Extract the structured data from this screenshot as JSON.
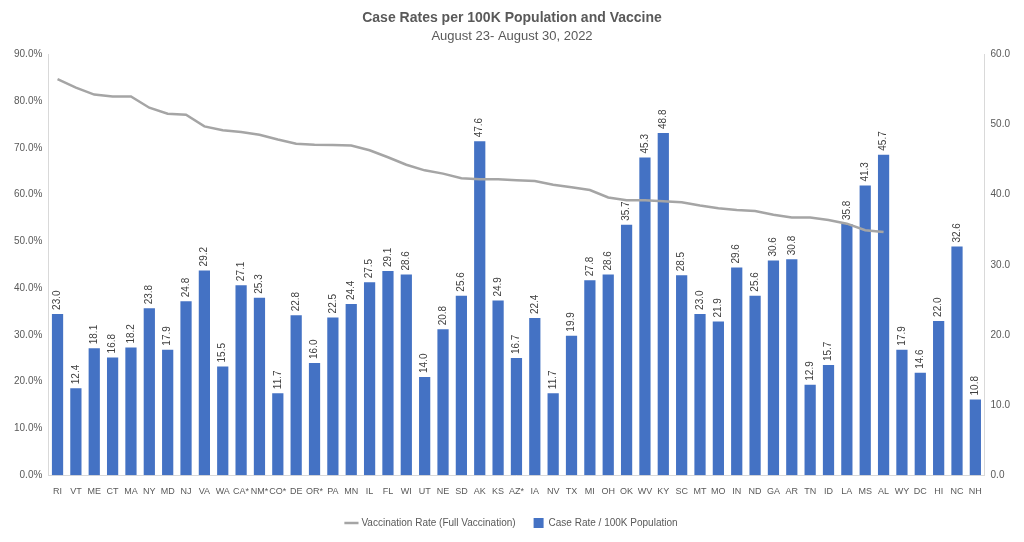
{
  "chart_data": {
    "type": "bar",
    "title": "Case Rates per 100K Population and Vaccine",
    "subtitle": "August 23- August 30, 2022",
    "categories": [
      "RI",
      "VT",
      "ME",
      "CT",
      "MA",
      "NY",
      "MD",
      "NJ",
      "VA",
      "WA",
      "CA*",
      "NM*",
      "CO*",
      "DE",
      "OR*",
      "PA",
      "MN",
      "IL",
      "FL",
      "WI",
      "UT",
      "NE",
      "SD",
      "AK",
      "KS",
      "AZ*",
      "IA",
      "NV",
      "TX",
      "MI",
      "OH",
      "OK",
      "WV",
      "KY",
      "SC",
      "MT",
      "MO",
      "IN",
      "ND",
      "GA",
      "AR",
      "TN",
      "ID",
      "LA",
      "MS",
      "AL",
      "WY",
      "DC",
      "HI",
      "NC",
      "NH"
    ],
    "series": [
      {
        "name": "Case Rate / 100K Population",
        "type": "bar",
        "color": "#4472c4",
        "axis": "y2",
        "values": [
          23.0,
          12.4,
          18.1,
          16.8,
          18.2,
          23.8,
          17.9,
          24.8,
          29.2,
          15.5,
          27.1,
          25.3,
          11.7,
          22.8,
          16.0,
          22.5,
          24.4,
          27.5,
          29.1,
          28.6,
          14.0,
          20.8,
          25.6,
          47.6,
          24.9,
          16.7,
          22.4,
          11.7,
          19.9,
          27.8,
          28.6,
          35.7,
          45.3,
          48.8,
          28.5,
          23.0,
          21.9,
          29.6,
          25.6,
          30.6,
          30.8,
          12.9,
          15.7,
          35.8,
          41.3,
          45.7,
          17.9,
          14.6,
          22.0,
          32.6,
          10.8
        ],
        "value_labels": [
          "23.0",
          "12.4",
          "18.1",
          "16.8",
          "18.2",
          "23.8",
          "17.9",
          "24.8",
          "29.2",
          "15.5",
          "27.1",
          "25.3",
          "11.7",
          "22.8",
          "16.0",
          "22.5",
          "24.4",
          "27.5",
          "29.1",
          "28.6",
          "14.0",
          "20.8",
          "25.6",
          "47.6",
          "24.9",
          "16.7",
          "22.4",
          "11.7",
          "19.9",
          "27.8",
          "28.6",
          "35.7",
          "45.3",
          "48.8",
          "28.5",
          "23.0",
          "21.9",
          "29.6",
          "25.6",
          "30.6",
          "30.8",
          "12.9",
          "15.7",
          "35.8",
          "41.3",
          "45.7",
          "17.9",
          "14.6",
          "22.0",
          "32.6",
          "10.8"
        ]
      },
      {
        "name": "Vaccination Rate (Full Vaccination)",
        "type": "line",
        "color": "#a5a5a5",
        "marker": "none",
        "line_style": "solid",
        "values": [
          84.7,
          82.9,
          81.4,
          81.0,
          81.0,
          78.6,
          77.3,
          77.1,
          74.6,
          73.8,
          73.4,
          72.8,
          71.8,
          70.9,
          70.7,
          70.6,
          70.5,
          69.5,
          68.0,
          66.4,
          65.2,
          64.5,
          63.5,
          63.3,
          63.3,
          63.1,
          62.9,
          62.1,
          61.6,
          61.0,
          59.4,
          58.8,
          58.8,
          58.6,
          58.4,
          57.7,
          57.1,
          56.7,
          56.5,
          55.7,
          55.1,
          55.1,
          54.6,
          53.8,
          52.4,
          52.0,
          null,
          null,
          null,
          null,
          null
        ]
      }
    ],
    "ylim": [
      0,
      90
    ],
    "yticks": [
      {
        "value": 0,
        "label": "0.0%"
      },
      {
        "value": 10,
        "label": "10.0%"
      },
      {
        "value": 20,
        "label": "20.0%"
      },
      {
        "value": 30,
        "label": "30.0%"
      },
      {
        "value": 40,
        "label": "40.0%"
      },
      {
        "value": 50,
        "label": "50.0%"
      },
      {
        "value": 60,
        "label": "60.0%"
      },
      {
        "value": 70,
        "label": "70.0%"
      },
      {
        "value": 80,
        "label": "80.0%"
      },
      {
        "value": 90,
        "label": "90.0%"
      }
    ],
    "y2lim": [
      0,
      60
    ],
    "y2ticks": [
      {
        "value": 0,
        "label": "0.0"
      },
      {
        "value": 10,
        "label": "10.0"
      },
      {
        "value": 20,
        "label": "20.0"
      },
      {
        "value": 30,
        "label": "30.0"
      },
      {
        "value": 40,
        "label": "40.0"
      },
      {
        "value": 50,
        "label": "50.0"
      },
      {
        "value": 60,
        "label": "60.0"
      }
    ],
    "grid": false,
    "legend": "bottom",
    "data_labels": true
  }
}
